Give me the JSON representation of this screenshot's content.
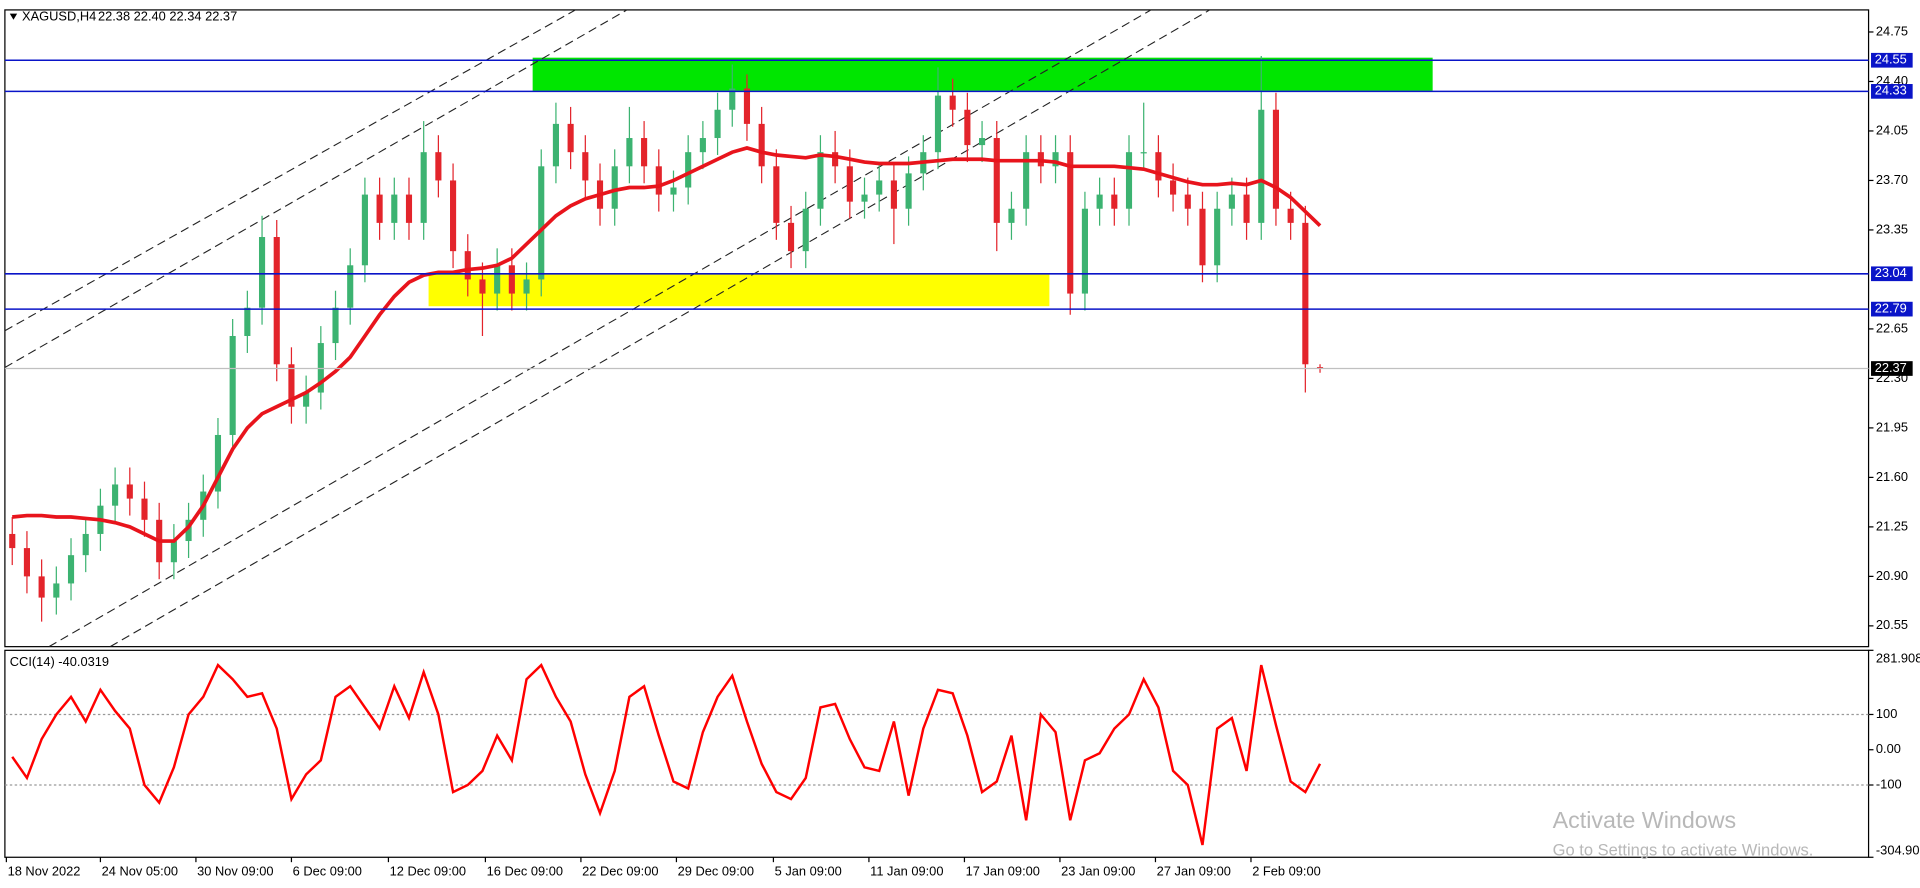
{
  "chart_data": [
    {
      "type": "candlestick",
      "symbol": "XAGUSD,H4",
      "ohlc_header": "22.38 22.40 22.34 22.37",
      "up_color": "#3cb371",
      "down_color": "#e3242b",
      "open": [
        21.2,
        21.1,
        20.9,
        20.75,
        20.85,
        21.05,
        21.2,
        21.4,
        21.55,
        21.45,
        21.3,
        21.0,
        21.15,
        21.3,
        21.5,
        21.9,
        22.6,
        22.8,
        23.3,
        22.4,
        22.1,
        22.2,
        22.55,
        22.8,
        23.1,
        23.6,
        23.4,
        23.6,
        23.4,
        23.9,
        23.7,
        23.2,
        23.0,
        22.9,
        23.1,
        22.9,
        23.0,
        23.8,
        24.1,
        23.9,
        23.7,
        23.5,
        23.8,
        24.0,
        23.8,
        23.6,
        23.65,
        23.9,
        24.0,
        24.2,
        24.35,
        24.1,
        23.8,
        23.4,
        23.2,
        23.5,
        23.9,
        23.8,
        23.55,
        23.6,
        23.7,
        23.5,
        23.75,
        23.9,
        24.3,
        24.2,
        23.95,
        24.0,
        23.4,
        23.5,
        23.9,
        23.8,
        23.9,
        22.9,
        23.5,
        23.6,
        23.5,
        23.9,
        23.9,
        23.7,
        23.6,
        23.5,
        23.1,
        23.5,
        23.6,
        23.4,
        24.2,
        23.5,
        23.4,
        22.38
      ],
      "high": [
        21.32,
        21.22,
        21.02,
        20.97,
        21.17,
        21.32,
        21.52,
        21.67,
        21.67,
        21.57,
        21.42,
        21.27,
        21.42,
        21.62,
        22.02,
        22.72,
        22.92,
        23.45,
        23.42,
        22.52,
        22.32,
        22.67,
        22.92,
        23.22,
        23.72,
        23.72,
        23.72,
        23.72,
        24.12,
        24.02,
        23.82,
        23.32,
        23.12,
        23.22,
        23.22,
        23.12,
        23.92,
        24.25,
        24.22,
        24.02,
        23.82,
        23.92,
        24.22,
        24.12,
        23.92,
        23.77,
        24.02,
        24.12,
        24.32,
        24.52,
        24.45,
        24.22,
        23.92,
        23.52,
        23.62,
        24.02,
        24.05,
        23.92,
        23.72,
        23.82,
        23.82,
        23.87,
        24.02,
        24.5,
        24.42,
        24.32,
        24.12,
        24.12,
        23.62,
        24.02,
        24.02,
        24.02,
        24.02,
        23.62,
        23.72,
        23.72,
        24.02,
        24.25,
        24.02,
        23.82,
        23.72,
        23.62,
        23.62,
        23.72,
        23.72,
        24.58,
        24.32,
        23.62,
        23.52,
        22.4
      ],
      "low": [
        20.98,
        20.78,
        20.58,
        20.63,
        20.73,
        20.93,
        21.08,
        21.28,
        21.33,
        21.18,
        20.88,
        20.88,
        21.03,
        21.18,
        21.38,
        21.78,
        22.48,
        22.68,
        22.28,
        21.98,
        21.98,
        22.08,
        22.43,
        22.68,
        22.98,
        23.28,
        23.28,
        23.28,
        23.28,
        23.58,
        23.08,
        22.88,
        22.6,
        22.78,
        22.78,
        22.78,
        22.88,
        23.68,
        23.78,
        23.58,
        23.38,
        23.38,
        23.68,
        23.68,
        23.48,
        23.48,
        23.53,
        23.78,
        23.88,
        24.08,
        23.98,
        23.68,
        23.28,
        23.08,
        23.08,
        23.38,
        23.68,
        23.43,
        23.43,
        23.48,
        23.25,
        23.38,
        23.63,
        23.78,
        24.08,
        23.83,
        23.83,
        23.2,
        23.28,
        23.38,
        23.68,
        23.68,
        22.75,
        22.78,
        23.38,
        23.38,
        23.38,
        23.78,
        23.58,
        23.48,
        23.38,
        22.98,
        22.98,
        23.38,
        23.28,
        23.28,
        23.38,
        23.28,
        22.2,
        22.34
      ],
      "close": [
        21.1,
        20.9,
        20.75,
        20.85,
        21.05,
        21.2,
        21.4,
        21.55,
        21.45,
        21.3,
        21.0,
        21.15,
        21.3,
        21.5,
        21.9,
        22.6,
        22.8,
        23.3,
        22.4,
        22.1,
        22.2,
        22.55,
        22.8,
        23.1,
        23.6,
        23.4,
        23.6,
        23.4,
        23.9,
        23.7,
        23.2,
        23.0,
        22.9,
        23.1,
        22.9,
        23.0,
        23.8,
        24.1,
        23.9,
        23.7,
        23.5,
        23.8,
        24.0,
        23.8,
        23.6,
        23.65,
        23.9,
        24.0,
        24.2,
        24.35,
        24.1,
        23.8,
        23.4,
        23.2,
        23.5,
        23.9,
        23.8,
        23.55,
        23.6,
        23.7,
        23.5,
        23.75,
        23.9,
        24.3,
        24.2,
        23.95,
        24.0,
        23.4,
        23.5,
        23.9,
        23.8,
        23.9,
        22.9,
        23.5,
        23.6,
        23.5,
        23.9,
        23.9,
        23.7,
        23.6,
        23.5,
        23.1,
        23.5,
        23.6,
        23.4,
        24.2,
        23.5,
        23.4,
        22.4,
        22.37
      ],
      "moving_average": {
        "color": "#e8141c",
        "values": [
          21.32,
          21.33,
          21.33,
          21.32,
          21.32,
          21.31,
          21.3,
          21.28,
          21.25,
          21.2,
          21.15,
          21.15,
          21.25,
          21.4,
          21.6,
          21.8,
          21.95,
          22.05,
          22.1,
          22.15,
          22.2,
          22.27,
          22.35,
          22.45,
          22.6,
          22.75,
          22.88,
          22.98,
          23.03,
          23.05,
          23.05,
          23.07,
          23.08,
          23.1,
          23.15,
          23.25,
          23.35,
          23.45,
          23.52,
          23.57,
          23.6,
          23.63,
          23.65,
          23.65,
          23.66,
          23.7,
          23.75,
          23.8,
          23.85,
          23.9,
          23.93,
          23.9,
          23.88,
          23.87,
          23.86,
          23.88,
          23.87,
          23.85,
          23.83,
          23.82,
          23.82,
          23.82,
          23.83,
          23.84,
          23.85,
          23.85,
          23.85,
          23.84,
          23.84,
          23.84,
          23.84,
          23.83,
          23.8,
          23.8,
          23.8,
          23.8,
          23.79,
          23.78,
          23.75,
          23.72,
          23.69,
          23.67,
          23.67,
          23.68,
          23.67,
          23.7,
          23.65,
          23.58,
          23.48,
          23.38
        ]
      },
      "levels": [
        24.55,
        24.33,
        23.04,
        22.79
      ],
      "level_color": "#0a14c8",
      "current_price": 22.37,
      "ylim": [
        20.403,
        24.906
      ],
      "yticks": [
        24.75,
        {
          "value": 24.4,
          "label": "24.40"
        },
        24.05,
        {
          "value": 23.7,
          "label": "23.70"
        },
        23.35,
        22.65,
        {
          "value": 22.3,
          "label": "22.30"
        },
        21.95,
        {
          "value": 21.6,
          "label": "21.60"
        },
        21.25,
        {
          "value": 20.9,
          "label": "20.90"
        },
        20.55
      ],
      "xlim": [
        -0.5,
        126.33
      ],
      "xticks": [
        {
          "value": -0.4,
          "label": "18 Nov 2022"
        },
        {
          "value": 6,
          "label": "24 Nov 05:00"
        },
        {
          "value": 12.5,
          "label": "30 Nov 09:00"
        },
        {
          "value": 19,
          "label": "6 Dec 09:00"
        },
        {
          "value": 25.6,
          "label": "12 Dec 09:00"
        },
        {
          "value": 32.2,
          "label": "16 Dec 09:00"
        },
        {
          "value": 38.7,
          "label": "22 Dec 09:00"
        },
        {
          "value": 45.2,
          "label": "29 Dec 09:00"
        },
        {
          "value": 51.8,
          "label": "5 Jan 09:00"
        },
        {
          "value": 58.3,
          "label": "11 Jan 09:00"
        },
        {
          "value": 64.8,
          "label": "17 Jan 09:00"
        },
        {
          "value": 71.3,
          "label": "23 Jan 09:00"
        },
        {
          "value": 77.8,
          "label": "27 Jan 09:00"
        },
        {
          "value": 84.3,
          "label": "2 Feb 09:00"
        }
      ]
    },
    {
      "type": "line",
      "title": "CCI(14) -40.0319",
      "color": "#ff0000",
      "values": [
        -20,
        -80,
        30,
        100,
        150,
        80,
        170,
        110,
        60,
        -100,
        -150,
        -50,
        100,
        150,
        240,
        200,
        150,
        160,
        60,
        -140,
        -70,
        -30,
        150,
        180,
        120,
        60,
        180,
        90,
        220,
        100,
        -120,
        -100,
        -60,
        40,
        -30,
        200,
        240,
        150,
        80,
        -70,
        -180,
        -60,
        150,
        180,
        40,
        -90,
        -110,
        50,
        150,
        210,
        80,
        -40,
        -120,
        -140,
        -80,
        120,
        130,
        30,
        -50,
        -60,
        80,
        -130,
        60,
        170,
        160,
        40,
        -120,
        -90,
        40,
        -200,
        100,
        50,
        -200,
        -30,
        -10,
        60,
        100,
        200,
        120,
        -60,
        -100,
        -270,
        60,
        90,
        -60,
        240,
        70,
        -90,
        -120,
        -40.0319
      ],
      "ylim": [
        -304.905,
        281.908
      ],
      "yticks": [
        281.908,
        100,
        {
          "value": 0,
          "label": "0.00"
        },
        -100,
        -304.905
      ],
      "levels": [
        100,
        -100
      ]
    }
  ],
  "watermark": {
    "title": "Activate Windows",
    "subtitle": "Go to Settings to activate Windows."
  }
}
